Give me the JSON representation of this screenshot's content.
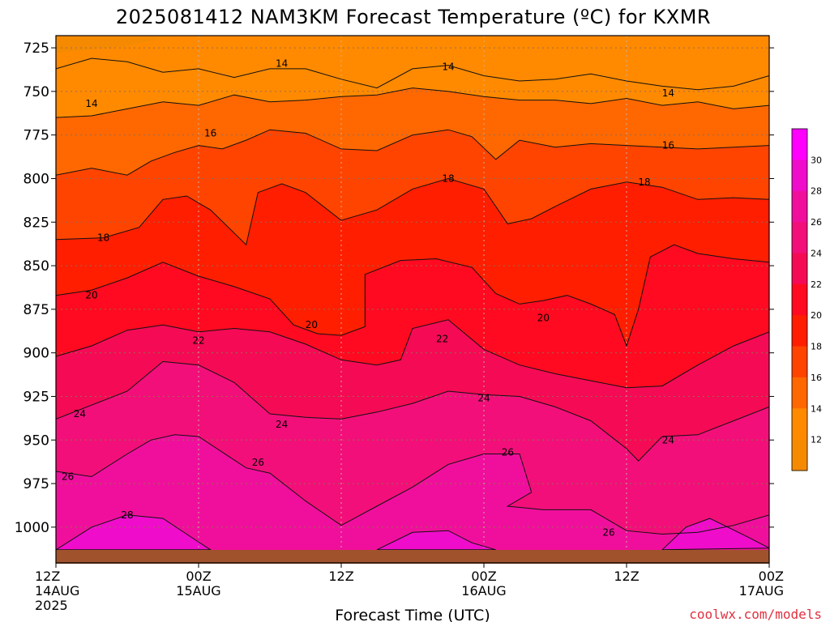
{
  "chart_data": {
    "type": "heatmap",
    "title": "2025081412 NAM3KM Forecast Temperature (ºC) for KXMR",
    "xlabel": "Forecast Time (UTC)",
    "ylabel": "",
    "credit": "coolwx.com/models",
    "x_ticks": [
      {
        "hour": 0,
        "line1": "12Z",
        "line2": "14AUG",
        "line3": "2025"
      },
      {
        "hour": 12,
        "line1": "00Z",
        "line2": "15AUG",
        "line3": ""
      },
      {
        "hour": 24,
        "line1": "12Z",
        "line2": "",
        "line3": ""
      },
      {
        "hour": 36,
        "line1": "00Z",
        "line2": "16AUG",
        "line3": ""
      },
      {
        "hour": 48,
        "line1": "12Z",
        "line2": "",
        "line3": ""
      },
      {
        "hour": 60,
        "line1": "00Z",
        "line2": "17AUG",
        "line3": ""
      }
    ],
    "xlim": [
      0,
      60
    ],
    "y_ticks": [
      725,
      750,
      775,
      800,
      825,
      850,
      875,
      900,
      925,
      950,
      975,
      1000
    ],
    "ylim": [
      718,
      1014
    ],
    "grid": true,
    "legend_ticks": [
      12,
      14,
      16,
      18,
      20,
      22,
      24,
      26,
      28,
      30
    ],
    "legend_position": "right",
    "colors": {
      "below_12": "#f58a00",
      "12-14": "#ff8a00",
      "14-16": "#ff6800",
      "16-18": "#ff4400",
      "18-20": "#ff1e00",
      "20-22": "#ff0a20",
      "22-24": "#f50a55",
      "24-26": "#f20f7a",
      "26-28": "#f00f9c",
      "28-30": "#f00ccb",
      "above_30": "#ff00ff",
      "ground": "#a0522d"
    },
    "isotherms": [
      {
        "value": 14,
        "points": [
          [
            0,
            737
          ],
          [
            3,
            731
          ],
          [
            6,
            733
          ],
          [
            9,
            739
          ],
          [
            12,
            737
          ],
          [
            15,
            742
          ],
          [
            18,
            737
          ],
          [
            21,
            737
          ],
          [
            24,
            743
          ],
          [
            27,
            748
          ],
          [
            30,
            737
          ],
          [
            33,
            735
          ],
          [
            36,
            741
          ],
          [
            39,
            744
          ],
          [
            42,
            743
          ],
          [
            45,
            740
          ],
          [
            48,
            744
          ],
          [
            51,
            747
          ],
          [
            54,
            749
          ],
          [
            57,
            747
          ],
          [
            60,
            741
          ]
        ]
      },
      {
        "value": 14,
        "points": [
          [
            0,
            765
          ],
          [
            3,
            764
          ],
          [
            6,
            760
          ],
          [
            9,
            756
          ],
          [
            12,
            758
          ],
          [
            15,
            752
          ],
          [
            18,
            756
          ],
          [
            21,
            755
          ],
          [
            24,
            753
          ],
          [
            27,
            752
          ],
          [
            30,
            748
          ],
          [
            33,
            750
          ],
          [
            36,
            753
          ],
          [
            39,
            755
          ],
          [
            42,
            755
          ],
          [
            45,
            757
          ],
          [
            48,
            754
          ],
          [
            51,
            758
          ],
          [
            54,
            756
          ],
          [
            57,
            760
          ],
          [
            60,
            758
          ]
        ]
      },
      {
        "value": 16,
        "points": [
          [
            0,
            798
          ],
          [
            3,
            794
          ],
          [
            6,
            798
          ],
          [
            8,
            790
          ],
          [
            10,
            785
          ],
          [
            12,
            781
          ],
          [
            14,
            783
          ],
          [
            16,
            778
          ],
          [
            18,
            772
          ],
          [
            21,
            774
          ],
          [
            24,
            783
          ],
          [
            27,
            784
          ],
          [
            30,
            775
          ],
          [
            33,
            772
          ],
          [
            35,
            776
          ],
          [
            37,
            789
          ],
          [
            39,
            778
          ],
          [
            42,
            782
          ],
          [
            45,
            780
          ],
          [
            48,
            781
          ],
          [
            51,
            782
          ],
          [
            54,
            783
          ],
          [
            57,
            782
          ],
          [
            60,
            781
          ]
        ]
      },
      {
        "value": 18,
        "points": [
          [
            0,
            835
          ],
          [
            4,
            834
          ],
          [
            7,
            828
          ],
          [
            9,
            812
          ],
          [
            11,
            810
          ],
          [
            13,
            818
          ],
          [
            16,
            838
          ],
          [
            17,
            808
          ],
          [
            19,
            803
          ],
          [
            21,
            808
          ],
          [
            24,
            824
          ],
          [
            27,
            818
          ],
          [
            30,
            806
          ],
          [
            33,
            800
          ],
          [
            36,
            806
          ],
          [
            38,
            826
          ],
          [
            40,
            823
          ],
          [
            42,
            816
          ],
          [
            45,
            806
          ],
          [
            48,
            802
          ],
          [
            51,
            805
          ],
          [
            54,
            812
          ],
          [
            57,
            811
          ],
          [
            60,
            812
          ]
        ]
      },
      {
        "value": 20,
        "points": [
          [
            0,
            867
          ],
          [
            3,
            864
          ],
          [
            6,
            857
          ],
          [
            9,
            848
          ],
          [
            12,
            856
          ],
          [
            15,
            862
          ],
          [
            18,
            869
          ],
          [
            20,
            884
          ],
          [
            22,
            889
          ],
          [
            24,
            890
          ],
          [
            26,
            885
          ],
          [
            26,
            855
          ],
          [
            29,
            847
          ],
          [
            32,
            846
          ],
          [
            35,
            851
          ],
          [
            37,
            866
          ],
          [
            39,
            872
          ],
          [
            41,
            870
          ],
          [
            43,
            867
          ],
          [
            45,
            872
          ],
          [
            47,
            878
          ],
          [
            48,
            896
          ],
          [
            49,
            875
          ],
          [
            50,
            845
          ],
          [
            52,
            838
          ],
          [
            54,
            843
          ],
          [
            57,
            846
          ],
          [
            60,
            848
          ]
        ]
      },
      {
        "value": 22,
        "points": [
          [
            0,
            902
          ],
          [
            3,
            896
          ],
          [
            6,
            887
          ],
          [
            9,
            884
          ],
          [
            12,
            888
          ],
          [
            15,
            886
          ],
          [
            18,
            888
          ],
          [
            21,
            895
          ],
          [
            24,
            904
          ],
          [
            27,
            907
          ],
          [
            29,
            904
          ],
          [
            30,
            886
          ],
          [
            33,
            881
          ],
          [
            36,
            898
          ],
          [
            39,
            907
          ],
          [
            42,
            912
          ],
          [
            45,
            916
          ],
          [
            48,
            920
          ],
          [
            51,
            919
          ],
          [
            54,
            907
          ],
          [
            57,
            896
          ],
          [
            60,
            888
          ]
        ]
      },
      {
        "value": 24,
        "points": [
          [
            0,
            938
          ],
          [
            3,
            930
          ],
          [
            6,
            922
          ],
          [
            9,
            905
          ],
          [
            12,
            907
          ],
          [
            15,
            917
          ],
          [
            18,
            935
          ],
          [
            21,
            937
          ],
          [
            24,
            938
          ],
          [
            27,
            934
          ],
          [
            30,
            929
          ],
          [
            33,
            922
          ],
          [
            36,
            924
          ],
          [
            39,
            925
          ],
          [
            42,
            931
          ],
          [
            45,
            939
          ],
          [
            48,
            955
          ],
          [
            49,
            962
          ],
          [
            51,
            948
          ],
          [
            54,
            947
          ],
          [
            57,
            939
          ],
          [
            60,
            931
          ]
        ]
      },
      {
        "value": 26,
        "points": [
          [
            0,
            968
          ],
          [
            3,
            971
          ],
          [
            6,
            958
          ],
          [
            8,
            950
          ],
          [
            10,
            947
          ],
          [
            12,
            948
          ],
          [
            14,
            957
          ],
          [
            16,
            966
          ],
          [
            18,
            969
          ],
          [
            21,
            985
          ],
          [
            24,
            999
          ],
          [
            27,
            988
          ],
          [
            30,
            977
          ],
          [
            33,
            964
          ],
          [
            36,
            958
          ],
          [
            39,
            958
          ],
          [
            40,
            980
          ],
          [
            38,
            988
          ],
          [
            41,
            990
          ],
          [
            45,
            990
          ],
          [
            48,
            1002
          ],
          [
            51,
            1004
          ],
          [
            54,
            1003
          ],
          [
            57,
            999
          ],
          [
            60,
            993
          ]
        ]
      },
      {
        "value": 28,
        "points": [
          [
            0,
            1013
          ],
          [
            3,
            1000
          ],
          [
            6,
            993
          ],
          [
            9,
            995
          ],
          [
            11,
            1004
          ],
          [
            13,
            1013
          ]
        ]
      },
      {
        "value": 28,
        "points": [
          [
            27,
            1013
          ],
          [
            30,
            1003
          ],
          [
            33,
            1002
          ],
          [
            35,
            1009
          ],
          [
            37,
            1013
          ]
        ]
      },
      {
        "value": 28,
        "points": [
          [
            51,
            1013
          ],
          [
            53,
            1000
          ],
          [
            55,
            995
          ],
          [
            58,
            1005
          ],
          [
            60,
            1012
          ]
        ]
      }
    ],
    "contour_labels": [
      {
        "text": "14",
        "hour": 19,
        "p": 734
      },
      {
        "text": "14",
        "hour": 33,
        "p": 736
      },
      {
        "text": "14",
        "hour": 51.5,
        "p": 751
      },
      {
        "text": "14",
        "hour": 3,
        "p": 757
      },
      {
        "text": "16",
        "hour": 13,
        "p": 774
      },
      {
        "text": "16",
        "hour": 51.5,
        "p": 781
      },
      {
        "text": "18",
        "hour": 33,
        "p": 800
      },
      {
        "text": "18",
        "hour": 49.5,
        "p": 802
      },
      {
        "text": "18",
        "hour": 4,
        "p": 834
      },
      {
        "text": "20",
        "hour": 3,
        "p": 867
      },
      {
        "text": "20",
        "hour": 21.5,
        "p": 884
      },
      {
        "text": "20",
        "hour": 41,
        "p": 880
      },
      {
        "text": "22",
        "hour": 12,
        "p": 893
      },
      {
        "text": "22",
        "hour": 32.5,
        "p": 892
      },
      {
        "text": "24",
        "hour": 2,
        "p": 935
      },
      {
        "text": "24",
        "hour": 19,
        "p": 941
      },
      {
        "text": "24",
        "hour": 36,
        "p": 926
      },
      {
        "text": "24",
        "hour": 51.5,
        "p": 950
      },
      {
        "text": "26",
        "hour": 1,
        "p": 971
      },
      {
        "text": "26",
        "hour": 17,
        "p": 963
      },
      {
        "text": "26",
        "hour": 38,
        "p": 957
      },
      {
        "text": "26",
        "hour": 46.5,
        "p": 1003
      },
      {
        "text": "28",
        "hour": 6,
        "p": 993
      }
    ]
  }
}
